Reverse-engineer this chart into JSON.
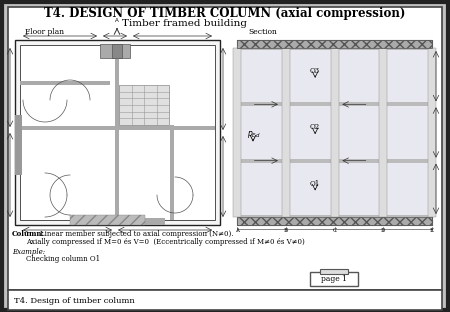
{
  "title": "T4. DESIGN OF TIMBER COLUMN (axial compression)",
  "subtitle": "Timber framed building",
  "floor_plan_label": "Floor plan",
  "section_label": "Section",
  "column_text_line1": "Column: Linear member subjected to axial compression (N≠0).",
  "column_text_line2": "         Axially compressed if M=0 és V=0  (Eccentrically compressed if M≠0 és V≠0)",
  "example_label": "Example:",
  "example_detail": "    Checking column O1",
  "page_label": "page 1",
  "footer_text": "T4. Design of timber column",
  "outer_bg": "#c0c0c0",
  "border_color": "#333333",
  "title_fontsize": 8.5,
  "subtitle_fontsize": 7.5,
  "label_fontsize": 5.5,
  "body_fontsize": 5.0
}
